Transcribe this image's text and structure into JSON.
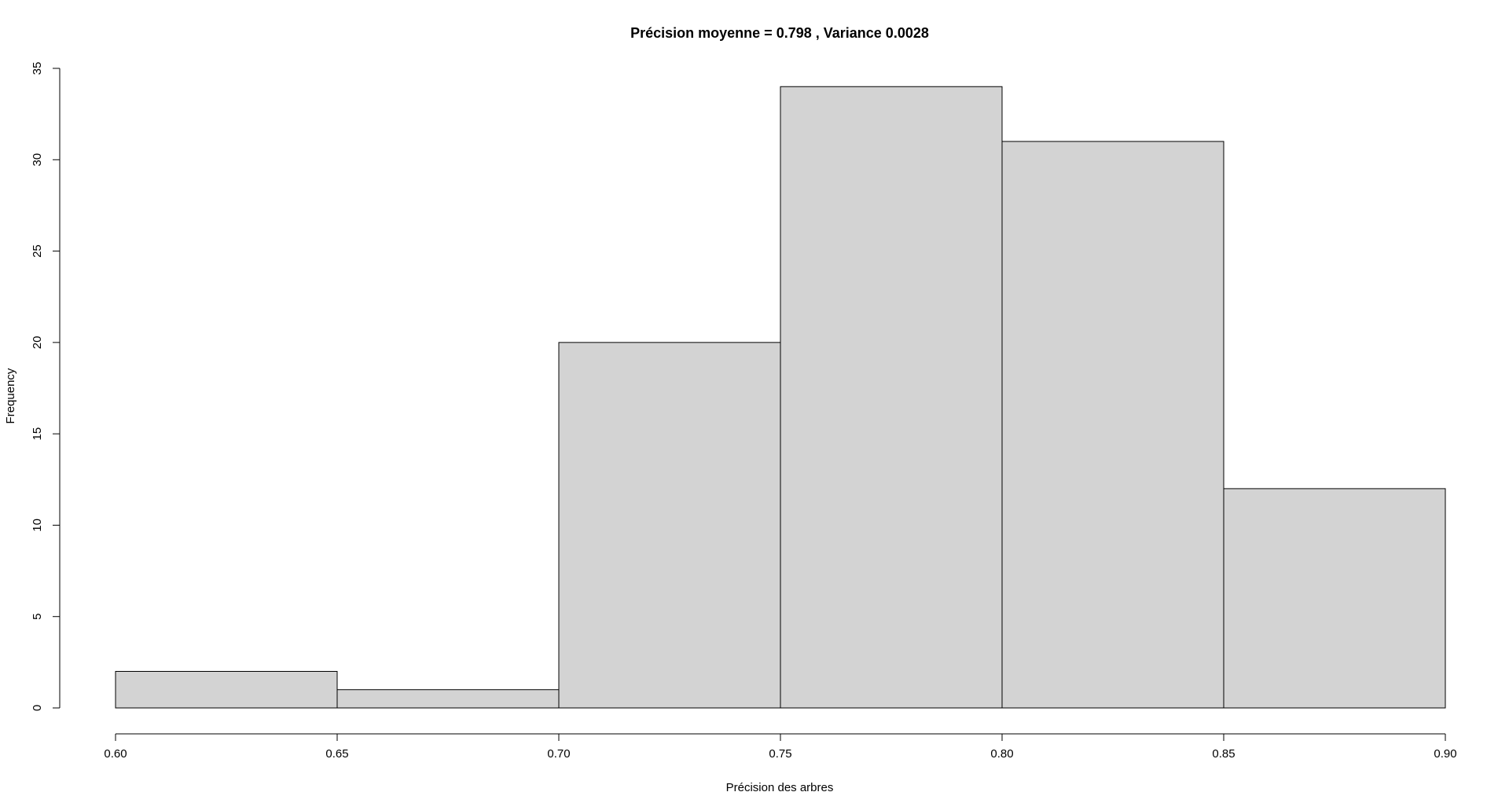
{
  "chart_data": {
    "type": "bar",
    "title": "Précision moyenne = 0.798 , Variance 0.0028",
    "xlabel": "Précision des arbres",
    "ylabel": "Frequency",
    "bins": [
      {
        "start": 0.6,
        "end": 0.65,
        "value": 2
      },
      {
        "start": 0.65,
        "end": 0.7,
        "value": 1
      },
      {
        "start": 0.7,
        "end": 0.75,
        "value": 20
      },
      {
        "start": 0.75,
        "end": 0.8,
        "value": 34
      },
      {
        "start": 0.8,
        "end": 0.85,
        "value": 31
      },
      {
        "start": 0.85,
        "end": 0.9,
        "value": 12
      }
    ],
    "xlim": [
      0.6,
      0.9
    ],
    "ylim": [
      0,
      35
    ],
    "x_ticks": [
      "0.60",
      "0.65",
      "0.70",
      "0.75",
      "0.80",
      "0.85",
      "0.90"
    ],
    "y_ticks": [
      "0",
      "5",
      "10",
      "15",
      "20",
      "25",
      "30",
      "35"
    ],
    "bar_color": "#d3d3d3",
    "edge_color": "#000000",
    "grid": false
  }
}
